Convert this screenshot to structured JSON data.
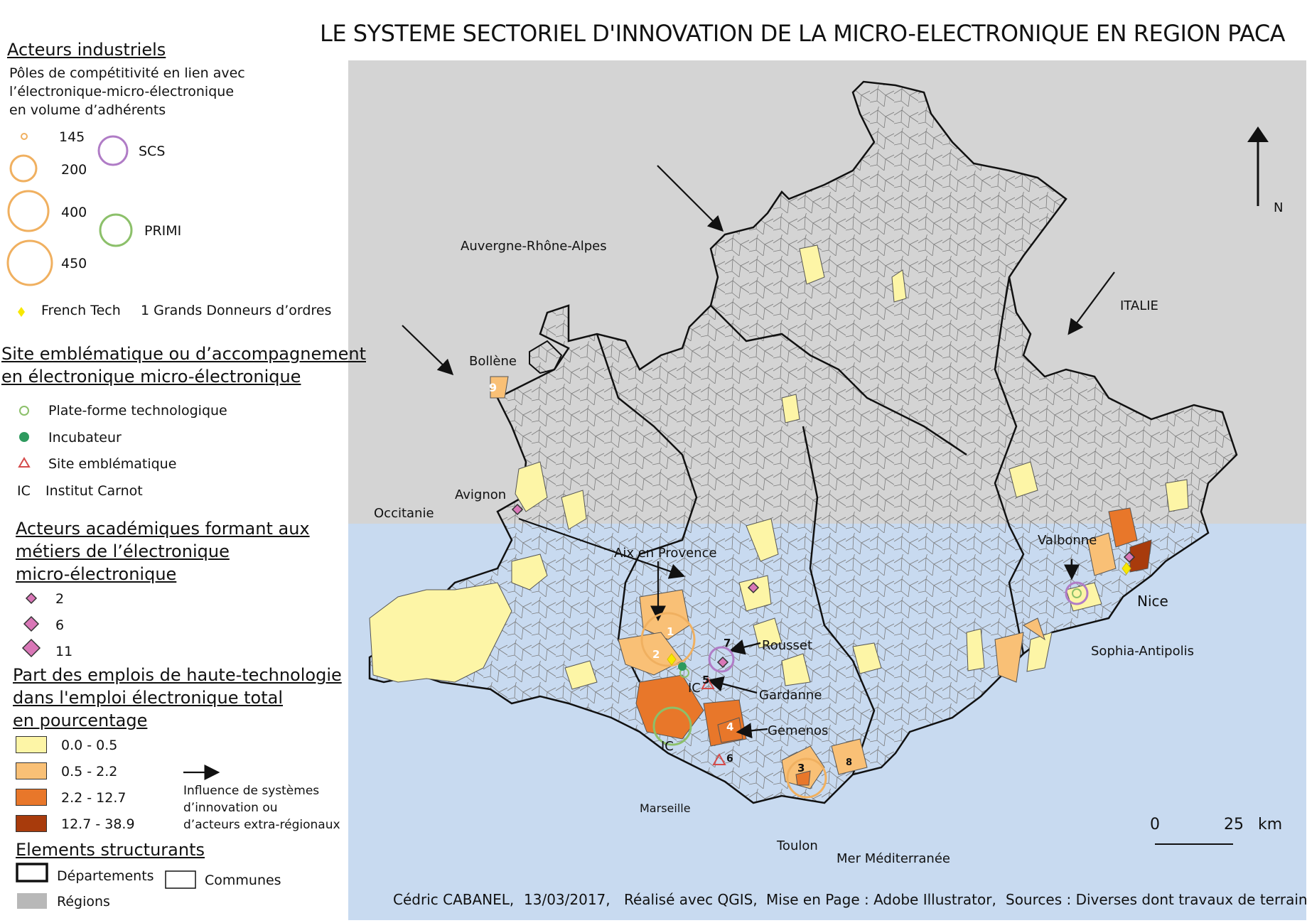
{
  "title": "LE SYSTEME SECTORIEL D'INNOVATION DE LA MICRO-ELECTRONIQUE EN REGION PACA",
  "legend": {
    "industrial": {
      "heading": "Acteurs industriels",
      "subheading": [
        "Pôles de compétitivité en lien avec",
        "l’électronique-micro-électronique",
        "en volume d’adhérents"
      ],
      "sizes": [
        "145",
        "200",
        "400",
        "450"
      ],
      "scs": "SCS",
      "primi": "PRIMI",
      "french_tech": "French Tech",
      "donneurs": "1 Grands Donneurs d’ordres"
    },
    "site": {
      "heading": [
        "Site emblématique ou d’accompagnement",
        "en électronique micro-électronique"
      ],
      "items": [
        "Plate-forme technologique",
        "Incubateur",
        "Site emblématique"
      ],
      "ic_abbr": "IC",
      "ic_label": "Institut Carnot"
    },
    "academic": {
      "heading": [
        "Acteurs académiques formant aux",
        "métiers de l’électronique",
        "micro-électronique"
      ],
      "sizes": [
        "2",
        "6",
        "11"
      ]
    },
    "share": {
      "heading": [
        "Part des emplois de haute-technologie",
        "dans l'emploi électronique total",
        "en pourcentage"
      ],
      "classes": [
        {
          "label": "0.0 - 0.5",
          "color": "#fdf5a6"
        },
        {
          "label": "0.5 - 2.2",
          "color": "#f9c076"
        },
        {
          "label": "2.2 - 12.7",
          "color": "#e8772a"
        },
        {
          "label": "12.7 - 38.9",
          "color": "#a83b0c"
        }
      ],
      "influence": [
        "Influence de systèmes",
        "d’innovation ou",
        "d’acteurs extra-régionaux"
      ]
    },
    "structure": {
      "heading": "Elements structurants",
      "departements": "Départements",
      "communes": "Communes",
      "regions": "Régions"
    }
  },
  "map": {
    "places": {
      "auvergne": "Auvergne-Rhône-Alpes",
      "italie": "ITALIE",
      "bollene": "Bollène",
      "avignon": "Avignon",
      "occitanie": "Occitanie",
      "aix": "Aix en Provence",
      "valbonne": "Valbonne",
      "nice": "Nice",
      "sophia": "Sophia-Antipolis",
      "rousset": "Rousset",
      "gardanne": "Gardanne",
      "gemenos": "Gemenos",
      "marseille": "Marseille",
      "toulon": "Toulon",
      "mer": "Mer Méditerranée"
    },
    "ic_labels": [
      "IC",
      "IC"
    ],
    "numbers": [
      "1",
      "2",
      "3",
      "4",
      "5",
      "6",
      "7",
      "8",
      "9"
    ],
    "north": "N",
    "scale": {
      "zero": "0",
      "distance": "25",
      "unit": "km"
    }
  },
  "colors": {
    "sea": "#c8daf0",
    "neighbor": "#d4d4d4",
    "commune": "#ffffff",
    "pole": "#f0b060",
    "scs": "#b07cc6",
    "primi": "#8cc06a",
    "incubateur": "#2e9a5e",
    "academic": "#d977b7",
    "french_tech": "#f7e800"
  },
  "footer": {
    "author": "Cédric CABANEL,",
    "date": "13/03/2017,",
    "made": "Réalisé avec QGIS,",
    "layout": "Mise en Page : Adobe Illustrator,",
    "sources": "Sources : Diverses dont travaux de terrain."
  }
}
